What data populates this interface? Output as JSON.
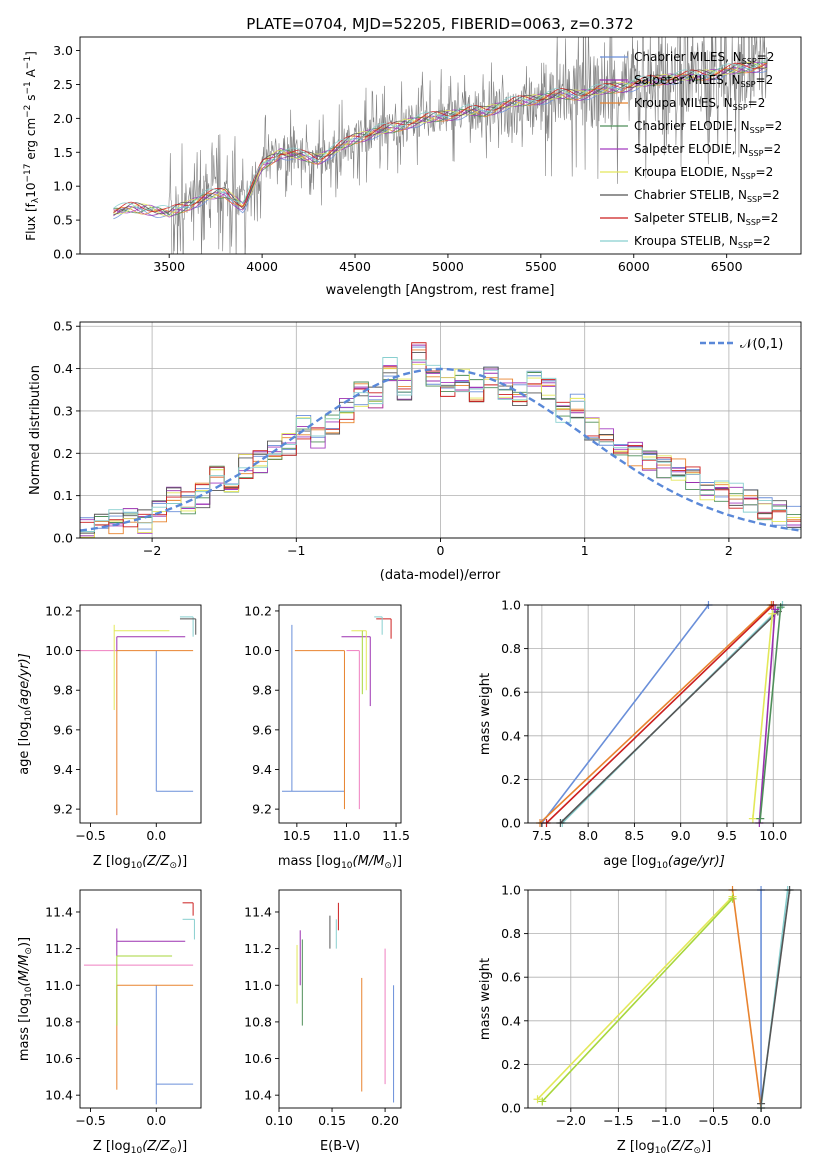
{
  "figure": {
    "title": "PLATE=0704, MJD=52205, FIBERID=0063, z=0.372"
  },
  "colors": {
    "chabrier_miles": "#6a8fd9",
    "salpeter_miles": "#9b30b0",
    "kroupa_miles": "#e8832f",
    "chabrier_elodie": "#4f8f5a",
    "salpeter_elodie": "#a43cc0",
    "kroupa_elodie": "#e3e85a",
    "chabrier_stelib": "#555555",
    "salpeter_stelib": "#cc1f1f",
    "kroupa_stelib": "#88cfcf",
    "data": "#808080",
    "pink": "#ef7fc0",
    "lime": "#a7d63b"
  },
  "chart_data": [
    {
      "id": "spectrum",
      "type": "line",
      "xlabel": "wavelength [Angstrom, rest frame]",
      "ylabel_main": "Flux [f",
      "ylabel_sub": "λ",
      "ylabel_rest": "10",
      "ylabel_exp": "−17",
      "ylabel_unit": " erg cm",
      "ylabel_unit_exp": "−2",
      "ylabel_s": " s",
      "ylabel_s_exp": "−1",
      "ylabel_A": " A",
      "ylabel_A_exp": "−1",
      "ylabel_close": "]",
      "xlim": [
        3020,
        6900
      ],
      "ylim": [
        0,
        3.2
      ],
      "xticks": [
        3500,
        4000,
        4500,
        5000,
        5500,
        6000,
        6500
      ],
      "yticks": [
        0.0,
        0.5,
        1.0,
        1.5,
        2.0,
        2.5,
        3.0
      ],
      "ytick_labels": [
        "0.0",
        "0.5",
        "1.0",
        "1.5",
        "2.0",
        "2.5",
        "3.0"
      ],
      "legend_position": "top-right",
      "model_curve": [
        [
          3200,
          0.62
        ],
        [
          3300,
          0.68
        ],
        [
          3400,
          0.66
        ],
        [
          3500,
          0.6
        ],
        [
          3600,
          0.72
        ],
        [
          3700,
          0.85
        ],
        [
          3800,
          0.9
        ],
        [
          3900,
          0.7
        ],
        [
          4000,
          1.3
        ],
        [
          4100,
          1.5
        ],
        [
          4200,
          1.45
        ],
        [
          4300,
          1.4
        ],
        [
          4400,
          1.55
        ],
        [
          4500,
          1.7
        ],
        [
          4600,
          1.8
        ],
        [
          4700,
          1.85
        ],
        [
          4800,
          1.95
        ],
        [
          4900,
          2.0
        ],
        [
          5000,
          2.05
        ],
        [
          5100,
          2.1
        ],
        [
          5200,
          2.1
        ],
        [
          5300,
          2.2
        ],
        [
          5400,
          2.25
        ],
        [
          5500,
          2.3
        ],
        [
          5600,
          2.35
        ],
        [
          5700,
          2.35
        ],
        [
          5800,
          2.4
        ],
        [
          5900,
          2.45
        ],
        [
          6000,
          2.5
        ],
        [
          6100,
          2.55
        ],
        [
          6200,
          2.6
        ],
        [
          6300,
          2.62
        ],
        [
          6400,
          2.65
        ],
        [
          6500,
          2.7
        ],
        [
          6600,
          2.75
        ],
        [
          6700,
          2.78
        ]
      ],
      "series": [
        {
          "name": "Chabrier MILES, N",
          "sub": "SSP",
          "suffix": "=2",
          "color_key": "chabrier_miles"
        },
        {
          "name": "Salpeter MILES, N",
          "sub": "SSP",
          "suffix": "=2",
          "color_key": "salpeter_miles"
        },
        {
          "name": "Kroupa MILES, N",
          "sub": "SSP",
          "suffix": "=2",
          "color_key": "kroupa_miles"
        },
        {
          "name": "Chabrier ELODIE, N",
          "sub": "SSP",
          "suffix": "=2",
          "color_key": "chabrier_elodie"
        },
        {
          "name": "Salpeter ELODIE, N",
          "sub": "SSP",
          "suffix": "=2",
          "color_key": "salpeter_elodie"
        },
        {
          "name": "Kroupa ELODIE, N",
          "sub": "SSP",
          "suffix": "=2",
          "color_key": "kroupa_elodie"
        },
        {
          "name": "Chabrier STELIB, N",
          "sub": "SSP",
          "suffix": "=2",
          "color_key": "chabrier_stelib"
        },
        {
          "name": "Salpeter STELIB, N",
          "sub": "SSP",
          "suffix": "=2",
          "color_key": "salpeter_stelib"
        },
        {
          "name": "Kroupa STELIB, N",
          "sub": "SSP",
          "suffix": "=2",
          "color_key": "kroupa_stelib"
        }
      ]
    },
    {
      "id": "residuals",
      "type": "line",
      "xlabel": "(data-model)/error",
      "ylabel": "Normed distribution",
      "xlim": [
        -2.5,
        2.5
      ],
      "ylim": [
        0,
        0.51
      ],
      "xticks": [
        -2,
        -1,
        0,
        1,
        2
      ],
      "xtick_labels": [
        "−2",
        "−1",
        "0",
        "1",
        "2"
      ],
      "yticks": [
        0.0,
        0.1,
        0.2,
        0.3,
        0.4,
        0.5
      ],
      "ytick_labels": [
        "0.0",
        "0.1",
        "0.2",
        "0.3",
        "0.4",
        "0.5"
      ],
      "grid": true,
      "legend_position": "top-right",
      "gaussian_label": "𝒩(0,1)",
      "hist_bins": [
        -2.5,
        2.5,
        50
      ],
      "hist_heights": [
        0.02,
        0.03,
        0.04,
        0.05,
        0.04,
        0.06,
        0.09,
        0.08,
        0.1,
        0.14,
        0.12,
        0.17,
        0.18,
        0.2,
        0.22,
        0.26,
        0.24,
        0.27,
        0.3,
        0.34,
        0.33,
        0.4,
        0.35,
        0.44,
        0.38,
        0.36,
        0.37,
        0.35,
        0.38,
        0.35,
        0.34,
        0.37,
        0.35,
        0.3,
        0.31,
        0.26,
        0.24,
        0.21,
        0.2,
        0.19,
        0.17,
        0.16,
        0.14,
        0.12,
        0.11,
        0.1,
        0.09,
        0.07,
        0.06,
        0.05
      ]
    },
    {
      "id": "age-vs-z",
      "type": "scatter",
      "xlabel": "Z [log",
      "xlabel_sub": "10",
      "xlabel_rest": "(Z/Z",
      "xlabel_sun": "⊙",
      "xlabel_close": ")]",
      "ylabel": "age  [log",
      "ylabel_sub": "10",
      "ylabel_rest": "(age/yr)]",
      "xlim": [
        -0.58,
        0.34
      ],
      "ylim": [
        9.13,
        10.23
      ],
      "xticks": [
        -0.5,
        0.0
      ],
      "xtick_labels": [
        "−0.5",
        "0.0"
      ],
      "yticks": [
        9.2,
        9.4,
        9.6,
        9.8,
        10.0,
        10.2
      ],
      "ytick_labels": [
        "9.2",
        "9.4",
        "9.6",
        "9.8",
        "10.0",
        "10.2"
      ]
    },
    {
      "id": "age-vs-mass",
      "type": "scatter",
      "xlabel": "mass [log",
      "xlabel_sub": "10",
      "xlabel_rest": "(M/M",
      "xlabel_sun": "⊙",
      "xlabel_close": ")]",
      "xlim": [
        10.32,
        11.55
      ],
      "ylim": [
        9.13,
        10.23
      ],
      "xticks": [
        10.5,
        11.0,
        11.5
      ],
      "xtick_labels": [
        "10.5",
        "11.0",
        "11.5"
      ],
      "yticks": [
        9.2,
        9.4,
        9.6,
        9.8,
        10.0,
        10.2
      ],
      "ytick_labels": [
        "9.2",
        "9.4",
        "9.6",
        "9.8",
        "10.0",
        "10.2"
      ]
    },
    {
      "id": "massweight-vs-age",
      "type": "line",
      "xlabel": "age  [log",
      "xlabel_sub": "10",
      "xlabel_rest": "(age/yr)]",
      "ylabel": "mass weight",
      "xlim": [
        7.35,
        10.3
      ],
      "ylim": [
        0,
        1.0
      ],
      "xticks": [
        7.5,
        8.0,
        8.5,
        9.0,
        9.5,
        10.0
      ],
      "xtick_labels": [
        "7.5",
        "8.0",
        "8.5",
        "9.0",
        "9.5",
        "10.0"
      ],
      "yticks": [
        0.0,
        0.2,
        0.4,
        0.6,
        0.8,
        1.0
      ],
      "ytick_labels": [
        "0.0",
        "0.2",
        "0.4",
        "0.6",
        "0.8",
        "1.0"
      ],
      "grid": true
    },
    {
      "id": "mass-vs-z",
      "type": "scatter",
      "xlabel": "Z [log",
      "xlabel_sub": "10",
      "xlabel_rest": "(Z/Z",
      "xlabel_sun": "⊙",
      "xlabel_close": ")]",
      "ylabel": "mass [log",
      "ylabel_sub": "10",
      "ylabel_rest": "(M/M",
      "ylabel_sun": "⊙",
      "ylabel_close": ")]",
      "xlim": [
        -0.58,
        0.34
      ],
      "ylim": [
        10.33,
        11.52
      ],
      "xticks": [
        -0.5,
        0.0
      ],
      "xtick_labels": [
        "−0.5",
        "0.0"
      ],
      "yticks": [
        10.4,
        10.6,
        10.8,
        11.0,
        11.2,
        11.4
      ],
      "ytick_labels": [
        "10.4",
        "10.6",
        "10.8",
        "11.0",
        "11.2",
        "11.4"
      ]
    },
    {
      "id": "mass-vs-ebv",
      "type": "scatter",
      "xlabel": "E(B-V)",
      "xlim": [
        0.1,
        0.215
      ],
      "ylim": [
        10.33,
        11.52
      ],
      "xticks": [
        0.1,
        0.15,
        0.2
      ],
      "xtick_labels": [
        "0.10",
        "0.15",
        "0.20"
      ],
      "yticks": [
        10.4,
        10.6,
        10.8,
        11.0,
        11.2,
        11.4
      ],
      "ytick_labels": [
        "10.4",
        "10.6",
        "10.8",
        "11.0",
        "11.2",
        "11.4"
      ]
    },
    {
      "id": "massweight-vs-z",
      "type": "line",
      "xlabel": "Z [log",
      "xlabel_sub": "10",
      "xlabel_rest": "(Z/Z",
      "xlabel_sun": "⊙",
      "xlabel_close": ")]",
      "ylabel": "mass weight",
      "xlim": [
        -2.45,
        0.42
      ],
      "ylim": [
        0,
        1.0
      ],
      "xticks": [
        -2.0,
        -1.5,
        -1.0,
        -0.5,
        0.0
      ],
      "xtick_labels": [
        "−2.0",
        "−1.5",
        "−1.0",
        "−0.5",
        "0.0"
      ],
      "yticks": [
        0.0,
        0.2,
        0.4,
        0.6,
        0.8,
        1.0
      ],
      "ytick_labels": [
        "0.0",
        "0.2",
        "0.4",
        "0.6",
        "0.8",
        "1.0"
      ],
      "grid": true
    }
  ]
}
